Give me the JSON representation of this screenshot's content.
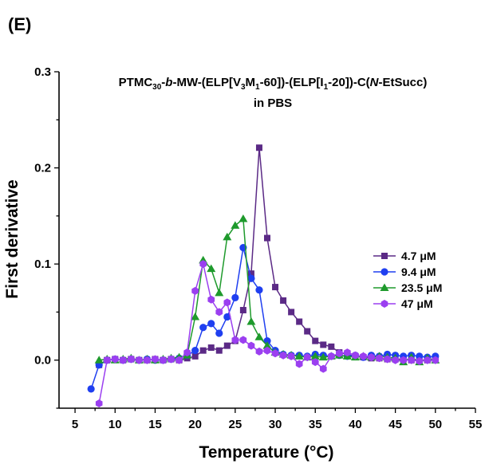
{
  "panel_label": "(E)",
  "chart_data": {
    "type": "line",
    "title_line2": "in PBS",
    "xlabel": "Temperature (°C)",
    "ylabel": "First derivative",
    "xlim": [
      3,
      55
    ],
    "ylim": [
      -0.05,
      0.3
    ],
    "x_ticks": [
      5,
      10,
      15,
      20,
      25,
      30,
      35,
      40,
      45,
      50,
      55
    ],
    "y_ticks": [
      0.0,
      0.1,
      0.2,
      0.3
    ],
    "y_tick_labels": [
      "0.0",
      "0.1",
      "0.2",
      "0.3"
    ],
    "grid": false,
    "legend_position": "right-middle",
    "series": [
      {
        "name": "4.7 μM",
        "marker": "square",
        "color": "#5b2a86",
        "x": [
          8,
          9,
          10,
          11,
          12,
          13,
          14,
          15,
          16,
          17,
          18,
          19,
          20,
          21,
          22,
          23,
          24,
          25,
          26,
          27,
          28,
          29,
          30,
          31,
          32,
          33,
          34,
          35,
          36,
          37,
          38,
          39,
          40,
          41,
          42,
          43,
          44,
          45,
          46,
          47,
          48,
          49,
          50
        ],
        "y": [
          -0.005,
          0.0,
          0.001,
          0.0,
          0.001,
          0.0,
          0.0,
          0.001,
          0.0,
          0.001,
          0.0,
          0.002,
          0.004,
          0.01,
          0.013,
          0.01,
          0.015,
          0.02,
          0.052,
          0.09,
          0.221,
          0.127,
          0.076,
          0.062,
          0.05,
          0.04,
          0.03,
          0.02,
          0.016,
          0.014,
          0.008,
          0.006,
          0.004,
          0.003,
          0.002,
          0.002,
          0.001,
          0.001,
          0.001,
          0.0,
          0.0,
          0.0,
          0.0
        ]
      },
      {
        "name": "9.4 μM",
        "marker": "circle",
        "color": "#1f3ff0",
        "x": [
          7,
          8,
          9,
          10,
          11,
          12,
          13,
          14,
          15,
          16,
          17,
          18,
          19,
          20,
          21,
          22,
          23,
          24,
          25,
          26,
          27,
          28,
          29,
          30,
          31,
          32,
          33,
          34,
          35,
          36,
          37,
          38,
          39,
          40,
          41,
          42,
          43,
          44,
          45,
          46,
          47,
          48,
          49,
          50
        ],
        "y": [
          -0.03,
          -0.005,
          0.0,
          0.001,
          0.0,
          0.001,
          0.0,
          0.001,
          0.0,
          0.0,
          0.001,
          0.002,
          0.005,
          0.01,
          0.034,
          0.038,
          0.028,
          0.045,
          0.065,
          0.117,
          0.085,
          0.073,
          0.02,
          0.01,
          0.006,
          0.005,
          0.005,
          0.004,
          0.006,
          0.005,
          0.004,
          0.005,
          0.004,
          0.005,
          0.003,
          0.005,
          0.004,
          0.006,
          0.005,
          0.004,
          0.005,
          0.004,
          0.003,
          0.004
        ]
      },
      {
        "name": "23.5 μM",
        "marker": "triangle",
        "color": "#1e9a2c",
        "x": [
          8,
          9,
          10,
          11,
          12,
          13,
          14,
          15,
          16,
          17,
          18,
          19,
          20,
          21,
          22,
          23,
          24,
          25,
          26,
          27,
          28,
          29,
          30,
          31,
          32,
          33,
          34,
          35,
          36,
          37,
          38,
          39,
          40,
          41,
          42,
          43,
          44,
          45,
          46,
          47,
          48,
          49,
          50
        ],
        "y": [
          0.0,
          0.001,
          0.0,
          0.001,
          0.002,
          0.0,
          0.001,
          0.0,
          0.001,
          0.002,
          0.003,
          0.005,
          0.045,
          0.104,
          0.095,
          0.07,
          0.128,
          0.14,
          0.147,
          0.04,
          0.024,
          0.015,
          0.008,
          0.006,
          0.005,
          0.004,
          0.003,
          0.004,
          0.003,
          0.004,
          0.005,
          0.004,
          0.003,
          0.004,
          0.003,
          0.004,
          0.003,
          0.002,
          -0.002,
          0.003,
          -0.002,
          0.002,
          0.0
        ]
      },
      {
        "name": "47 μM",
        "marker": "hexagon",
        "color": "#9b3ff0",
        "x": [
          8,
          9,
          10,
          11,
          12,
          13,
          14,
          15,
          16,
          17,
          18,
          19,
          20,
          21,
          22,
          23,
          24,
          25,
          26,
          27,
          28,
          29,
          30,
          31,
          32,
          33,
          34,
          35,
          36,
          37,
          38,
          39,
          40,
          41,
          42,
          43,
          44,
          45,
          46,
          47,
          48,
          49,
          50
        ],
        "y": [
          -0.045,
          0.0,
          0.001,
          0.0,
          0.001,
          0.0,
          0.0,
          0.001,
          0.0,
          0.001,
          0.0,
          0.008,
          0.072,
          0.1,
          0.063,
          0.05,
          0.06,
          0.021,
          0.021,
          0.015,
          0.009,
          0.01,
          0.007,
          0.005,
          0.004,
          -0.004,
          0.003,
          -0.002,
          -0.009,
          0.004,
          0.007,
          0.008,
          0.005,
          0.004,
          0.003,
          0.002,
          0.001,
          0.0,
          0.0,
          0.0,
          -0.001,
          0.0,
          0.0
        ]
      }
    ]
  }
}
